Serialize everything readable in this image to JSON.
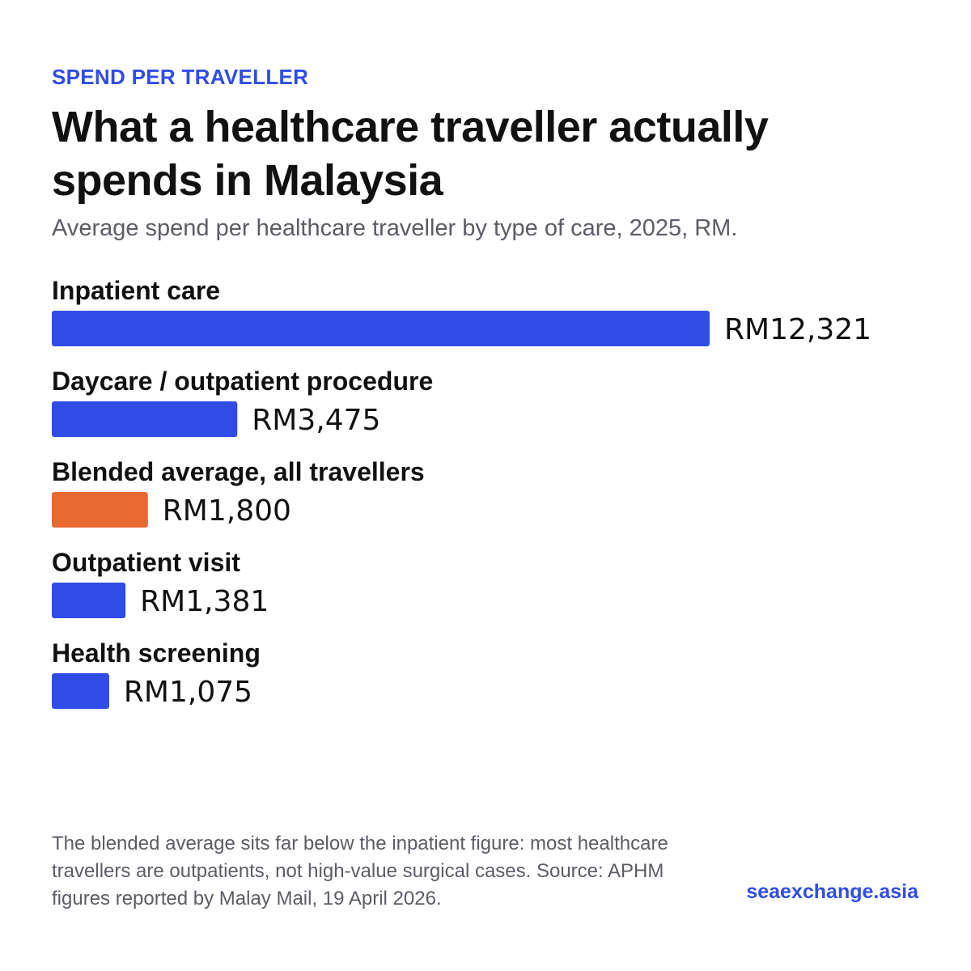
{
  "header": {
    "eyebrow": "SPEND PER TRAVELLER",
    "title": "What a healthcare traveller actually spends in Malaysia",
    "subtitle": "Average spend per healthcare traveller by type of care, 2025, RM."
  },
  "colors": {
    "primary": "#2f4de6",
    "highlight": "#e86a33"
  },
  "chart_data": {
    "type": "bar",
    "orientation": "horizontal",
    "title": "What a healthcare traveller actually spends in Malaysia",
    "subtitle": "Average spend per healthcare traveller by type of care, 2025, RM.",
    "unit": "RM",
    "categories": [
      "Inpatient care",
      "Daycare / outpatient procedure",
      "Blended average, all travellers",
      "Outpatient visit",
      "Health screening"
    ],
    "values": [
      12321,
      3475,
      1800,
      1381,
      1075
    ],
    "value_labels": [
      "RM12,321",
      "RM3,475",
      "RM1,800",
      "RM1,381",
      "RM1,075"
    ],
    "highlight": [
      "Blended average, all travellers"
    ],
    "grid": false,
    "legend": "none"
  },
  "footer": {
    "note": "The blended average sits far below the inpatient figure: most healthcare travellers are outpatients, not high-value surgical cases. Source: APHM figures reported by Malay Mail, 19 April 2026.",
    "brand": "seaexchange.asia"
  }
}
